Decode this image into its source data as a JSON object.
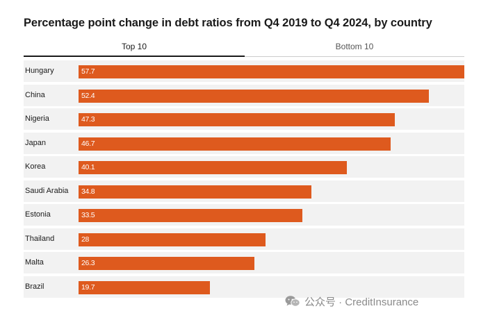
{
  "title": "Percentage point change in debt ratios from Q4 2019 to Q4 2024, by country",
  "tabs": [
    {
      "label": "Top 10"
    },
    {
      "label": "Bottom 10"
    }
  ],
  "watermark": {
    "text": "公众号 · CreditInsurance",
    "icon": "wechat-icon"
  },
  "colors": {
    "bar": "#de5a1e",
    "row_background": "#f2f2f2",
    "active_tab_underline": "#1a1a1a"
  },
  "chart_data": {
    "type": "bar",
    "orientation": "horizontal",
    "title": "Percentage point change in debt ratios from Q4 2019 to Q4 2024, by country",
    "categories": [
      "Hungary",
      "China",
      "Nigeria",
      "Japan",
      "Korea",
      "Saudi Arabia",
      "Estonia",
      "Thailand",
      "Malta",
      "Brazil"
    ],
    "value_labels": [
      "57.7",
      "52.4",
      "47.3",
      "46.7",
      "40.1",
      "34.8",
      "33.5",
      "28",
      "26.3",
      "19.7"
    ],
    "values": [
      57.7,
      52.4,
      47.3,
      46.7,
      40.1,
      34.8,
      33.5,
      28,
      26.3,
      19.7
    ],
    "xlim": [
      0,
      57.7
    ],
    "grid": false,
    "legend": "none"
  }
}
